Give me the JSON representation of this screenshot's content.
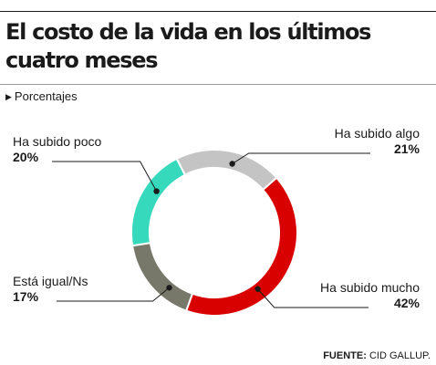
{
  "header": {
    "title": "El costo de la vida en los últimos cuatro meses",
    "subtitle": "Porcentajes"
  },
  "footer": {
    "source_label": "FUENTE:",
    "source_value": "CID GALLUP."
  },
  "chart_data": {
    "type": "pie",
    "donut": true,
    "title": "El costo de la vida en los últimos cuatro meses",
    "unit": "%",
    "legend": "none",
    "slices": [
      {
        "label": "Ha subido algo",
        "value": 21,
        "value_label": "21%",
        "color": "#c4c4c4"
      },
      {
        "label": "Ha subido mucho",
        "value": 42,
        "value_label": "42%",
        "color": "#d90000"
      },
      {
        "label": "Está igual/Ns",
        "value": 17,
        "value_label": "17%",
        "color": "#77786a"
      },
      {
        "label": "Ha subido poco",
        "value": 20,
        "value_label": "20%",
        "color": "#36d9bc"
      }
    ]
  }
}
